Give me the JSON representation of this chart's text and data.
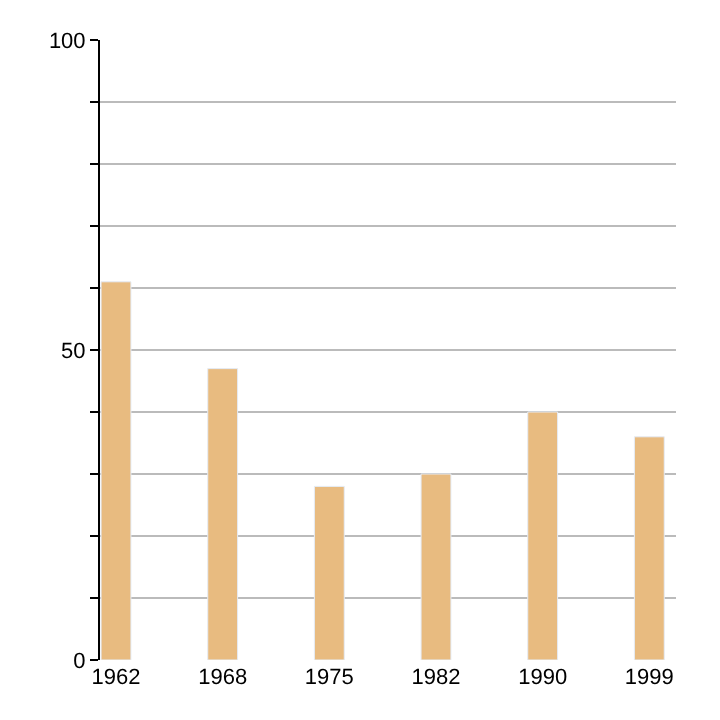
{
  "chart_data": {
    "type": "bar",
    "categories": [
      "1962",
      "1968",
      "1975",
      "1982",
      "1990",
      "1999"
    ],
    "values": [
      61,
      47,
      28,
      30,
      40,
      36
    ],
    "color": "#e8bb80",
    "ylim": [
      0,
      100
    ],
    "yticks": [
      0,
      {
        "value": 10,
        "label": null
      },
      {
        "value": 20,
        "label": null
      },
      {
        "value": 30,
        "label": null
      },
      {
        "value": 40,
        "label": null
      },
      50,
      {
        "value": 60,
        "label": null
      },
      {
        "value": 70,
        "label": null
      },
      {
        "value": 80,
        "label": null
      },
      {
        "value": 90,
        "label": null
      },
      100
    ],
    "grid": "y"
  }
}
